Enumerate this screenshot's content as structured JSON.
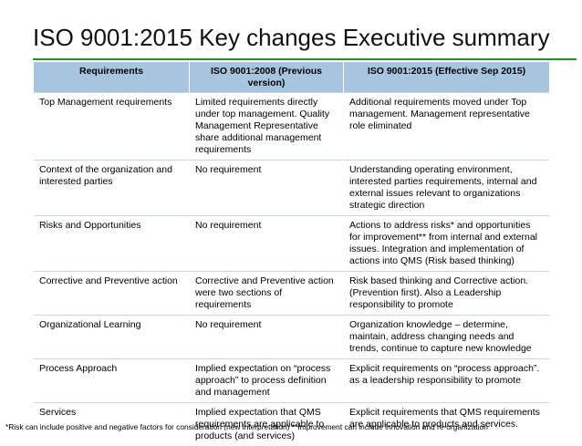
{
  "title": "ISO 9001:2015 Key changes Executive summary",
  "colors": {
    "title_rule": "#2e8b2e",
    "header_background": "#a8c5e0"
  },
  "table": {
    "headers": [
      "Requirements",
      "ISO 9001:2008 (Previous version)",
      "ISO 9001:2015 (Effective Sep 2015)"
    ],
    "rows": [
      [
        "Top Management requirements",
        "Limited requirements directly under top management. Quality Management Representative share additional management requirements",
        "Additional requirements moved under Top management. Management representative role eliminated"
      ],
      [
        "Context of the organization and interested parties",
        "No requirement",
        "Understanding operating environment, interested parties requirements, internal and external issues relevant to organizations strategic direction"
      ],
      [
        "Risks and Opportunities",
        "No requirement",
        "Actions to address risks* and opportunities for improvement** from internal and external issues. Integration and implementation of actions into QMS (Risk based thinking)"
      ],
      [
        "Corrective and Preventive action",
        "Corrective and Preventive action were two sections of requirements",
        "Risk based thinking and Corrective action. (Prevention first). Also a Leadership responsibility to promote"
      ],
      [
        "Organizational Learning",
        "No requirement",
        "Organization knowledge – determine, maintain, address changing needs and trends, continue to capture new knowledge"
      ],
      [
        "Process Approach",
        "Implied expectation on “process approach” to process definition and management",
        "Explicit requirements on “process approach”. as a leadership responsibility to promote"
      ],
      [
        "Services",
        "Implied expectation that QMS requirements are applicable to products (and services)",
        "Explicit requirements that QMS requirements are applicable to products and services."
      ]
    ]
  },
  "footnote": "*Risk can include positive and negative factors for consideration (new interpretation) **Improvement can include innovation and re-organization"
}
